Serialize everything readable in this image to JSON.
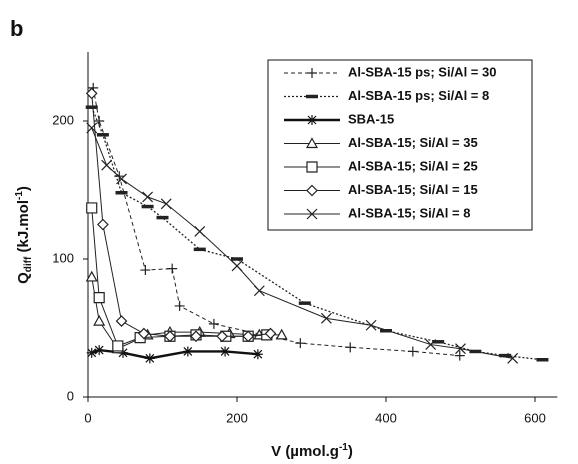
{
  "chart_data": {
    "type": "line",
    "title": "b",
    "y_label": {
      "main": "Q",
      "sub": "diff",
      "rest": " (kJ.mol",
      "sup": "-1",
      "end": ")"
    },
    "x_label": {
      "main": "V (µmol.g",
      "sup": "-1",
      "end": ")"
    },
    "xlim": [
      0,
      630
    ],
    "xticks": [
      0,
      200,
      400,
      600
    ],
    "ylim": [
      0,
      250
    ],
    "yticks": [
      0,
      100,
      200
    ],
    "legend": "top-right",
    "series": [
      {
        "name": "Al-SBA-15 ps; Si/Al = 30",
        "color": "#222222",
        "marker": "plus",
        "dash": "4,3",
        "width": 1,
        "x": [
          7,
          15,
          42,
          77,
          113,
          123,
          169,
          285,
          352,
          436,
          499
        ],
        "values": [
          224,
          200,
          160,
          92,
          93,
          66,
          53,
          39,
          36,
          33,
          30
        ]
      },
      {
        "name": "Al-SBA-15 ps; Si/Al = 8",
        "color": "#222222",
        "marker": "dash",
        "dash": "2,2",
        "width": 1.3,
        "x": [
          5,
          20,
          45,
          80,
          100,
          150,
          200,
          291,
          400,
          470,
          520,
          560,
          610
        ],
        "values": [
          210,
          190,
          148,
          138,
          130,
          107,
          100,
          68,
          48,
          40,
          33,
          30,
          27
        ]
      },
      {
        "name": "SBA-15",
        "color": "#111111",
        "marker": "star",
        "dash": "",
        "width": 2.4,
        "x": [
          5,
          15,
          47,
          83,
          134,
          184,
          228
        ],
        "values": [
          32,
          34,
          32,
          28,
          33,
          33,
          31
        ]
      },
      {
        "name": "Al-SBA-15; Si/Al = 35",
        "color": "#222222",
        "marker": "triangle",
        "dash": "",
        "width": 1,
        "x": [
          5,
          15,
          40,
          80,
          110,
          150,
          190,
          230,
          260
        ],
        "values": [
          87,
          55,
          35,
          45,
          47,
          47,
          46,
          45,
          45
        ]
      },
      {
        "name": "Al-SBA-15; Si/Al = 25",
        "color": "#222222",
        "marker": "square",
        "dash": "",
        "width": 1,
        "x": [
          5,
          15,
          40,
          70,
          110,
          145,
          185,
          215,
          240
        ],
        "values": [
          137,
          72,
          37,
          43,
          44,
          45,
          44,
          44,
          45
        ]
      },
      {
        "name": "Al-SBA-15; Si/Al = 15",
        "color": "#222222",
        "marker": "diamond",
        "dash": "",
        "width": 1,
        "x": [
          5,
          20,
          45,
          75,
          110,
          145,
          180,
          215,
          245
        ],
        "values": [
          220,
          125,
          55,
          46,
          44,
          44,
          44,
          44,
          46
        ]
      },
      {
        "name": "Al-SBA-15; Si/Al = 8",
        "color": "#222222",
        "marker": "cross",
        "dash": "",
        "width": 1,
        "x": [
          5,
          25,
          45,
          80,
          105,
          150,
          200,
          230,
          320,
          380,
          460,
          500,
          570
        ],
        "values": [
          195,
          168,
          158,
          145,
          140,
          120,
          95,
          77,
          57,
          52,
          38,
          35,
          28
        ]
      }
    ]
  }
}
